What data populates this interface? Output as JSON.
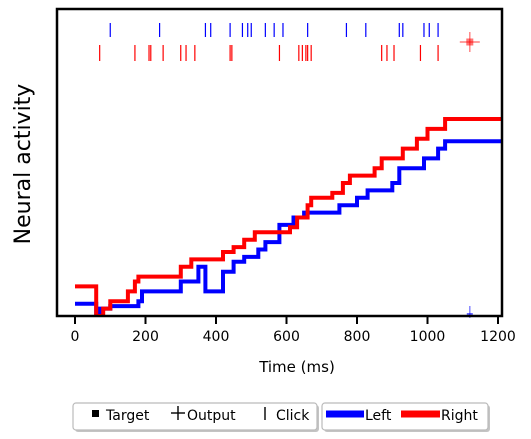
{
  "chart_data": {
    "type": "line",
    "xlabel": "Time (ms)",
    "ylabel": "Neural activity",
    "xlim": [
      -55,
      1310
    ],
    "xticks": [
      0,
      200,
      400,
      600,
      800,
      1000,
      1200
    ],
    "colors": {
      "left": "#0000ff",
      "right": "#ff0000"
    },
    "series": [
      {
        "name": "Left",
        "color": "#0000ff",
        "x": [
          0,
          60,
          60,
          70,
          70,
          100,
          100,
          180,
          180,
          190,
          190,
          300,
          300,
          350,
          350,
          370,
          370,
          420,
          420,
          450,
          450,
          480,
          480,
          520,
          520,
          540,
          540,
          580,
          580,
          620,
          620,
          650,
          650,
          750,
          750,
          800,
          800,
          830,
          830,
          900,
          900,
          920,
          920,
          990,
          990,
          1030,
          1030,
          1050,
          1050,
          1250
        ],
        "y": [
          0.5,
          0.5,
          0.0,
          0.0,
          0.3,
          0.3,
          0.4,
          0.4,
          0.6,
          0.6,
          1.0,
          1.0,
          1.4,
          1.4,
          2.0,
          2.0,
          1.0,
          1.0,
          1.8,
          1.8,
          2.2,
          2.2,
          2.4,
          2.4,
          2.7,
          2.7,
          3.0,
          3.0,
          3.7,
          3.7,
          4.0,
          4.0,
          4.2,
          4.2,
          4.5,
          4.5,
          4.8,
          4.8,
          5.1,
          5.1,
          5.4,
          5.4,
          6.0,
          6.0,
          6.4,
          6.4,
          6.8,
          6.8,
          7.1,
          7.1
        ]
      },
      {
        "name": "Right",
        "color": "#ff0000",
        "x": [
          0,
          60,
          60,
          80,
          80,
          100,
          100,
          150,
          150,
          170,
          170,
          180,
          180,
          300,
          300,
          330,
          330,
          420,
          420,
          450,
          450,
          480,
          480,
          510,
          510,
          610,
          610,
          630,
          630,
          660,
          660,
          670,
          670,
          730,
          730,
          760,
          760,
          780,
          780,
          850,
          850,
          870,
          870,
          930,
          930,
          970,
          970,
          1000,
          1000,
          1050,
          1050,
          1250
        ],
        "y": [
          1.2,
          1.2,
          0.0,
          0.0,
          0.3,
          0.3,
          0.6,
          0.6,
          1.0,
          1.0,
          1.4,
          1.4,
          1.6,
          1.6,
          2.0,
          2.0,
          2.3,
          2.3,
          2.6,
          2.6,
          2.8,
          2.8,
          3.1,
          3.1,
          3.4,
          3.4,
          3.6,
          3.6,
          4.0,
          4.0,
          4.5,
          4.5,
          4.8,
          4.8,
          5.0,
          5.0,
          5.4,
          5.4,
          5.7,
          5.7,
          6.0,
          6.0,
          6.4,
          6.4,
          6.8,
          6.8,
          7.2,
          7.2,
          7.6,
          7.6,
          8.0,
          8.0
        ]
      }
    ],
    "clicks": {
      "left": [
        100,
        240,
        370,
        385,
        440,
        475,
        490,
        500,
        540,
        565,
        590,
        660,
        770,
        825,
        920,
        930,
        990,
        1005,
        1030
      ],
      "right": [
        70,
        170,
        210,
        215,
        250,
        300,
        315,
        340,
        440,
        445,
        580,
        635,
        645,
        655,
        660,
        670,
        870,
        885,
        905,
        980,
        1030
      ]
    },
    "target": {
      "x": 1120,
      "side": "right"
    },
    "output": {
      "x": 1120,
      "side": "right"
    },
    "target_left_marker": {
      "x": 1120
    },
    "legend": {
      "placement": "bottom-center",
      "group1": [
        {
          "label": "Target",
          "marker": "square"
        },
        {
          "label": "Output",
          "marker": "plus"
        },
        {
          "label": "Click",
          "marker": "vline"
        }
      ],
      "group2": [
        {
          "label": "Left",
          "color": "#0000ff"
        },
        {
          "label": "Right",
          "color": "#ff0000"
        }
      ]
    }
  }
}
